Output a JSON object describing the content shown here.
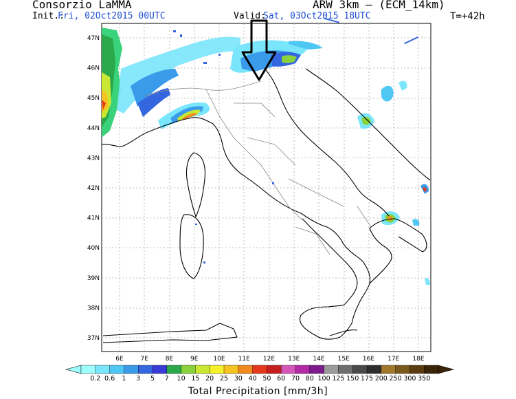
{
  "header": {
    "organization": "Consorzio LaMMA",
    "init_label": "Init.:",
    "init_value": "Fri, 02Oct2015 00UTC",
    "valid_label": "Valid:",
    "valid_value": "Sat, 03Oct2015 18UTC",
    "model": "ARW 3km – (ECM_14km)",
    "timestep": "T=+42h"
  },
  "map": {
    "lat_labels": [
      "47N",
      "46N",
      "45N",
      "44N",
      "43N",
      "42N",
      "41N",
      "40N",
      "39N",
      "38N",
      "37N"
    ],
    "lon_labels": [
      "6E",
      "7E",
      "8E",
      "9E",
      "10E",
      "11E",
      "12E",
      "13E",
      "14E",
      "15E",
      "16E",
      "17E",
      "18E"
    ],
    "arrow": "down-arrow"
  },
  "colorbar": {
    "title": "Total Precipitation [mm/3h]",
    "labels": [
      "0.2",
      "0.6",
      "1",
      "3",
      "5",
      "7",
      "10",
      "15",
      "20",
      "25",
      "30",
      "40",
      "50",
      "60",
      "70",
      "80",
      "100",
      "125",
      "150",
      "175",
      "200",
      "250",
      "300",
      "350"
    ],
    "colors": [
      "#9ffcfc",
      "#7ae6fb",
      "#4fc7f5",
      "#3a9bea",
      "#3466e0",
      "#3a3ad6",
      "#2aa84a",
      "#8ad23c",
      "#c9e832",
      "#f5f02a",
      "#f5c322",
      "#f08a1e",
      "#e6381c",
      "#c41e1e",
      "#d456b8",
      "#b22aa6",
      "#7c1a8e",
      "#9a9a9a",
      "#6e6e6e",
      "#4a4a4a",
      "#2e2e2e",
      "#a0782a",
      "#7a5a1c",
      "#5a3c10",
      "#3a2408"
    ]
  }
}
